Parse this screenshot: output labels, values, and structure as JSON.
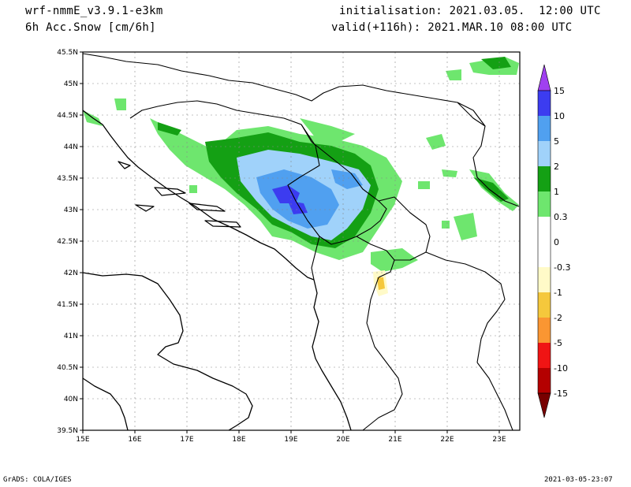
{
  "header": {
    "model": "wrf-nmmE_v3.9.1-e3km",
    "product": "6h Acc.Snow [cm/6h]",
    "init": "initialisation: 2021.03.05.  12:00 UTC",
    "valid": "valid(+116h): 2021.MAR.10 08:00 UTC"
  },
  "footer": {
    "credit": "GrADS: COLA/IGES",
    "stamp": "2021-03-05-23:07"
  },
  "map": {
    "lon_labels": [
      "15E",
      "16E",
      "17E",
      "18E",
      "19E",
      "20E",
      "21E",
      "22E",
      "23E"
    ],
    "lat_labels": [
      "45.5N",
      "45N",
      "44.5N",
      "44N",
      "43.5N",
      "43N",
      "42.5N",
      "42N",
      "41.5N",
      "41N",
      "40.5N",
      "40N",
      "39.5N"
    ]
  },
  "colorbar": {
    "labels": [
      "15",
      "10",
      "5",
      "2",
      "1",
      "0.3",
      "0",
      "-0.3",
      "-1",
      "-2",
      "-5",
      "-10",
      "-15"
    ],
    "colors": {
      "purple": "#a040f0",
      "blue_dark": "#3c3cf0",
      "blue_mid": "#50a0f0",
      "blue_light": "#a0d2fa",
      "green_dark": "#14a014",
      "green_light": "#6ee66e",
      "white": "#ffffff",
      "yellow_pale": "#fffac8",
      "yellow": "#f5c83c",
      "orange": "#fa9632",
      "red": "#f01414",
      "red_dark": "#b40000",
      "maroon": "#780000"
    }
  }
}
